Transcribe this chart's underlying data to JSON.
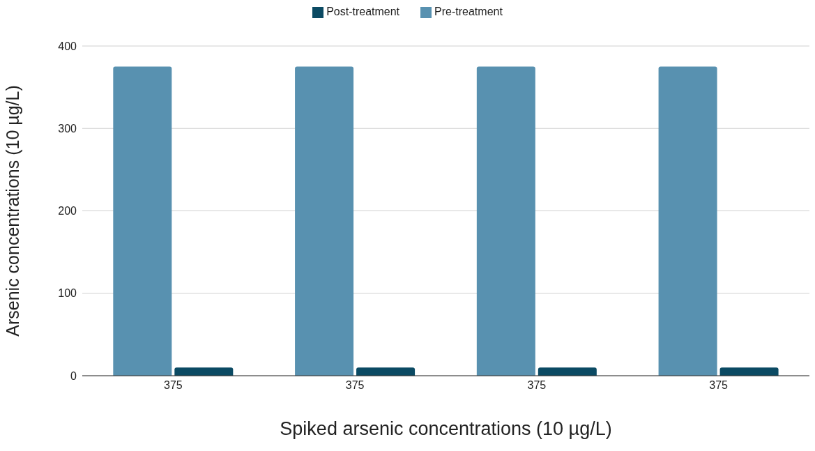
{
  "chart_data": {
    "type": "bar",
    "xlabel": "Spiked arsenic concentrations (10 µg/L)",
    "ylabel": "Arsenic concentrations (10 µg/L)",
    "categories": [
      "375",
      "375",
      "375",
      "375"
    ],
    "series": [
      {
        "name": "Pre-treatment",
        "color": "#5891b0",
        "values": [
          375,
          375,
          375,
          375
        ]
      },
      {
        "name": "Post-treatment",
        "color": "#0b4a63",
        "values": [
          10,
          10,
          10,
          10
        ]
      }
    ],
    "ylim": [
      0,
      400
    ],
    "yticks": [
      0,
      100,
      200,
      300,
      400
    ],
    "grid": "y",
    "legend": "top"
  }
}
